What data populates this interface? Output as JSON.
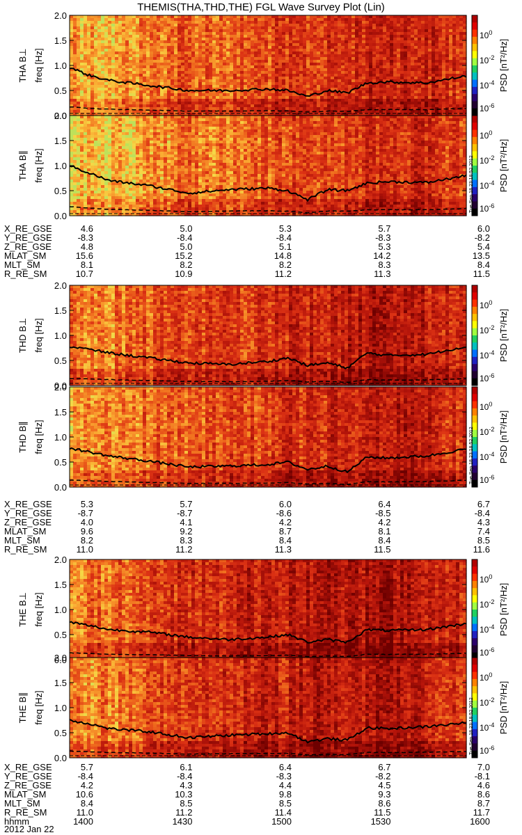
{
  "title": "THEMIS(THA,THD,THE) FGL Wave Survey Plot (Lin)",
  "date_label": "2012 Jan 22",
  "stamp": "Tue Sep 18 23:18:52 2012",
  "colorbar": {
    "label": "PSD [nT²/Hz]",
    "tick_labels": [
      "10^0",
      "10^-2",
      "10^-4",
      "10^-6"
    ]
  },
  "chart_data": [
    {
      "type": "heatmap",
      "title": "THEMIS(THA,THD,THE) FGL Wave Survey Plot (Lin)",
      "panels": [
        {
          "probe": "THA",
          "component": "B⊥",
          "ylabel": "THA B⊥",
          "yunit": "freq [Hz]",
          "ylim": [
            0,
            2.0
          ],
          "yticks": [
            "0.0",
            "0.5",
            "1.0",
            "1.5",
            "2.0"
          ],
          "fce_curve": [
            [
              0,
              0.96
            ],
            [
              0.05,
              0.8
            ],
            [
              0.1,
              0.7
            ],
            [
              0.2,
              0.6
            ],
            [
              0.3,
              0.5
            ],
            [
              0.4,
              0.5
            ],
            [
              0.5,
              0.53
            ],
            [
              0.55,
              0.5
            ],
            [
              0.6,
              0.38
            ],
            [
              0.65,
              0.5
            ],
            [
              0.7,
              0.45
            ],
            [
              0.75,
              0.65
            ],
            [
              0.8,
              0.67
            ],
            [
              0.9,
              0.65
            ],
            [
              1.0,
              0.79
            ]
          ],
          "intensity": [
            0.7,
            0.8,
            0.65,
            0.55,
            0.6,
            0.5,
            0.45,
            0.4,
            0.3,
            0.35,
            0.45
          ]
        },
        {
          "probe": "THA",
          "component": "B∥",
          "ylabel": "THA B∥",
          "yunit": "freq [Hz]",
          "ylim": [
            0,
            2.0
          ],
          "yticks": [
            "0.0",
            "0.5",
            "1.0",
            "1.5",
            "2.0"
          ],
          "fce_curve": [
            [
              0,
              1.0
            ],
            [
              0.05,
              0.85
            ],
            [
              0.1,
              0.7
            ],
            [
              0.2,
              0.6
            ],
            [
              0.3,
              0.45
            ],
            [
              0.4,
              0.52
            ],
            [
              0.5,
              0.55
            ],
            [
              0.55,
              0.5
            ],
            [
              0.6,
              0.32
            ],
            [
              0.65,
              0.52
            ],
            [
              0.7,
              0.5
            ],
            [
              0.75,
              0.65
            ],
            [
              0.8,
              0.68
            ],
            [
              0.9,
              0.66
            ],
            [
              1.0,
              0.8
            ]
          ],
          "intensity": [
            0.85,
            0.85,
            0.75,
            0.6,
            0.7,
            0.55,
            0.5,
            0.45,
            0.35,
            0.4,
            0.5
          ]
        },
        {
          "probe": "THD",
          "component": "B⊥",
          "ylabel": "THD B⊥",
          "yunit": "freq [Hz]",
          "ylim": [
            0,
            2.0
          ],
          "yticks": [
            "0.0",
            "0.5",
            "1.0",
            "1.5",
            "2.0"
          ],
          "fce_curve": [
            [
              0,
              0.78
            ],
            [
              0.05,
              0.72
            ],
            [
              0.1,
              0.65
            ],
            [
              0.2,
              0.55
            ],
            [
              0.3,
              0.45
            ],
            [
              0.4,
              0.42
            ],
            [
              0.5,
              0.48
            ],
            [
              0.55,
              0.55
            ],
            [
              0.6,
              0.4
            ],
            [
              0.65,
              0.45
            ],
            [
              0.7,
              0.35
            ],
            [
              0.75,
              0.65
            ],
            [
              0.8,
              0.6
            ],
            [
              0.9,
              0.62
            ],
            [
              1.0,
              0.78
            ]
          ],
          "intensity": [
            0.65,
            0.65,
            0.55,
            0.5,
            0.45,
            0.4,
            0.35,
            0.3,
            0.2,
            0.3,
            0.4
          ]
        },
        {
          "probe": "THD",
          "component": "B∥",
          "ylabel": "THD B∥",
          "yunit": "freq [Hz]",
          "ylim": [
            0,
            2.0
          ],
          "yticks": [
            "0.0",
            "0.5",
            "1.0",
            "1.5",
            "2.0"
          ],
          "fce_curve": [
            [
              0,
              0.78
            ],
            [
              0.05,
              0.7
            ],
            [
              0.1,
              0.62
            ],
            [
              0.2,
              0.52
            ],
            [
              0.3,
              0.4
            ],
            [
              0.4,
              0.42
            ],
            [
              0.5,
              0.45
            ],
            [
              0.55,
              0.5
            ],
            [
              0.6,
              0.35
            ],
            [
              0.65,
              0.42
            ],
            [
              0.7,
              0.3
            ],
            [
              0.75,
              0.6
            ],
            [
              0.8,
              0.58
            ],
            [
              0.9,
              0.62
            ],
            [
              1.0,
              0.76
            ]
          ],
          "intensity": [
            0.75,
            0.7,
            0.6,
            0.55,
            0.5,
            0.45,
            0.4,
            0.35,
            0.25,
            0.35,
            0.45
          ]
        },
        {
          "probe": "THE",
          "component": "B⊥",
          "ylabel": "THE B⊥",
          "yunit": "freq [Hz]",
          "ylim": [
            0,
            2.0
          ],
          "yticks": [
            "0.0",
            "0.5",
            "1.0",
            "1.5",
            "2.0"
          ],
          "fce_curve": [
            [
              0,
              0.75
            ],
            [
              0.05,
              0.68
            ],
            [
              0.1,
              0.6
            ],
            [
              0.2,
              0.55
            ],
            [
              0.3,
              0.45
            ],
            [
              0.4,
              0.4
            ],
            [
              0.5,
              0.45
            ],
            [
              0.55,
              0.5
            ],
            [
              0.6,
              0.35
            ],
            [
              0.65,
              0.4
            ],
            [
              0.7,
              0.35
            ],
            [
              0.75,
              0.6
            ],
            [
              0.8,
              0.58
            ],
            [
              0.9,
              0.6
            ],
            [
              1.0,
              0.72
            ]
          ],
          "intensity": [
            0.65,
            0.6,
            0.5,
            0.4,
            0.35,
            0.3,
            0.25,
            0.25,
            0.15,
            0.3,
            0.4
          ]
        },
        {
          "probe": "THE",
          "component": "B∥",
          "ylabel": "THE B∥",
          "yunit": "freq [Hz]",
          "ylim": [
            0,
            2.0
          ],
          "yticks": [
            "0.0",
            "0.5",
            "1.0",
            "1.5",
            "2.0"
          ],
          "fce_curve": [
            [
              0,
              0.75
            ],
            [
              0.05,
              0.68
            ],
            [
              0.1,
              0.58
            ],
            [
              0.2,
              0.52
            ],
            [
              0.3,
              0.4
            ],
            [
              0.4,
              0.45
            ],
            [
              0.5,
              0.48
            ],
            [
              0.55,
              0.5
            ],
            [
              0.6,
              0.32
            ],
            [
              0.65,
              0.38
            ],
            [
              0.7,
              0.35
            ],
            [
              0.75,
              0.6
            ],
            [
              0.8,
              0.58
            ],
            [
              0.9,
              0.62
            ],
            [
              1.0,
              0.7
            ]
          ],
          "intensity": [
            0.7,
            0.65,
            0.55,
            0.45,
            0.4,
            0.35,
            0.3,
            0.3,
            0.2,
            0.35,
            0.45
          ]
        }
      ],
      "ephemeris": [
        {
          "probe": "THA",
          "rows": [
            {
              "label": "X_RE_GSE",
              "values": [
                "4.6",
                "5.0",
                "5.3",
                "5.7",
                "6.0"
              ]
            },
            {
              "label": "Y_RE_GSE",
              "values": [
                "-8.3",
                "-8.4",
                "-8.4",
                "-8.3",
                "-8.2"
              ]
            },
            {
              "label": "Z_RE_GSE",
              "values": [
                "4.8",
                "5.0",
                "5.1",
                "5.3",
                "5.4"
              ]
            },
            {
              "label": "MLAT_SM",
              "values": [
                "15.6",
                "15.2",
                "14.8",
                "14.2",
                "13.5"
              ]
            },
            {
              "label": "MLT_SM",
              "values": [
                "8.1",
                "8.2",
                "8.2",
                "8.3",
                "8.4"
              ]
            },
            {
              "label": "R_RE_SM",
              "values": [
                "10.7",
                "10.9",
                "11.2",
                "11.3",
                "11.5"
              ]
            }
          ]
        },
        {
          "probe": "THD",
          "rows": [
            {
              "label": "X_RE_GSE",
              "values": [
                "5.3",
                "5.7",
                "6.0",
                "6.4",
                "6.7"
              ]
            },
            {
              "label": "Y_RE_GSE",
              "values": [
                "-8.7",
                "-8.7",
                "-8.6",
                "-8.5",
                "-8.4"
              ]
            },
            {
              "label": "Z_RE_GSE",
              "values": [
                "4.0",
                "4.1",
                "4.2",
                "4.2",
                "4.3"
              ]
            },
            {
              "label": "MLAT_SM",
              "values": [
                "9.6",
                "9.2",
                "8.7",
                "8.1",
                "7.4"
              ]
            },
            {
              "label": "MLT_SM",
              "values": [
                "8.2",
                "8.3",
                "8.4",
                "8.4",
                "8.5"
              ]
            },
            {
              "label": "R_RE_SM",
              "values": [
                "11.0",
                "11.2",
                "11.3",
                "11.5",
                "11.6"
              ]
            }
          ]
        },
        {
          "probe": "THE",
          "rows": [
            {
              "label": "X_RE_GSE",
              "values": [
                "5.7",
                "6.1",
                "6.4",
                "6.7",
                "7.0"
              ]
            },
            {
              "label": "Y_RE_GSE",
              "values": [
                "-8.4",
                "-8.4",
                "-8.3",
                "-8.2",
                "-8.1"
              ]
            },
            {
              "label": "Z_RE_GSE",
              "values": [
                "4.2",
                "4.3",
                "4.4",
                "4.5",
                "4.6"
              ]
            },
            {
              "label": "MLAT_SM",
              "values": [
                "10.6",
                "10.3",
                "9.8",
                "9.3",
                "8.6"
              ]
            },
            {
              "label": "MLT_SM",
              "values": [
                "8.4",
                "8.5",
                "8.5",
                "8.6",
                "8.7"
              ]
            },
            {
              "label": "R_RE_SM",
              "values": [
                "11.0",
                "11.2",
                "11.4",
                "11.5",
                "11.7"
              ]
            },
            {
              "label": "hhmm",
              "values": [
                "1400",
                "1430",
                "1500",
                "1530",
                "1600"
              ]
            }
          ]
        }
      ]
    }
  ]
}
